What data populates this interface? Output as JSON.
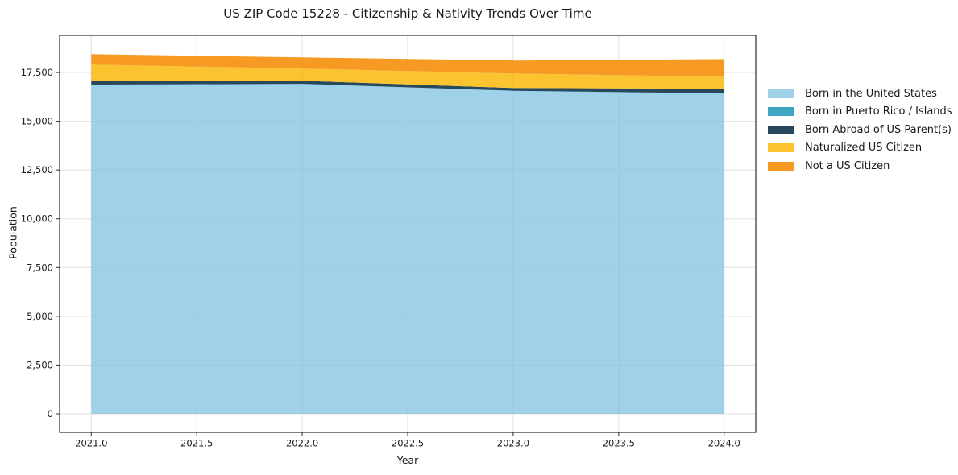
{
  "title": "US ZIP Code 15228 - Citizenship & Nativity Trends Over Time",
  "chart_data": {
    "type": "area",
    "stacked": true,
    "title": "US ZIP Code 15228 - Citizenship & Nativity Trends Over Time",
    "xlabel": "Year",
    "ylabel": "Population",
    "x": [
      2021,
      2022,
      2023,
      2024
    ],
    "series": [
      {
        "name": "Born in the United States",
        "color": "#9FD1E8",
        "values": [
          16870,
          16910,
          16555,
          16420
        ]
      },
      {
        "name": "Born in Puerto Rico / Islands",
        "color": "#3FA6C2",
        "values": [
          8,
          8,
          8,
          8
        ]
      },
      {
        "name": "Born Abroad of US Parent(s)",
        "color": "#28495C",
        "values": [
          200,
          160,
          140,
          235
        ]
      },
      {
        "name": "Naturalized US Citizen",
        "color": "#FCC330",
        "values": [
          825,
          620,
          745,
          615
        ]
      },
      {
        "name": "Not a US Citizen",
        "color": "#F79A23",
        "values": [
          535,
          575,
          665,
          910
        ]
      }
    ],
    "xlim": [
      2020.85,
      2024.15
    ],
    "ylim": [
      -950,
      19400
    ],
    "xtick_values": [
      2021,
      2021.5,
      2022,
      2022.5,
      2023,
      2023.5,
      2024
    ],
    "xtick_labels": [
      "2021.0",
      "2021.5",
      "2022.0",
      "2022.5",
      "2023.0",
      "2023.5",
      "2024.0"
    ],
    "ytick_values": [
      0,
      2500,
      5000,
      7500,
      10000,
      12500,
      15000,
      17500
    ],
    "ytick_labels": [
      "0",
      "2,500",
      "5,000",
      "7,500",
      "10,000",
      "12,500",
      "15,000",
      "17,500"
    ],
    "grid": true,
    "legend_position": "right-outside"
  },
  "colors": {
    "background": "#FFFFFF",
    "grid": "#E8E8E8",
    "grid_overlay": "rgba(100,100,100,0.06)",
    "spine": "#2B2B2B",
    "tick": "#2B2B2B",
    "text": "#1A1A1A"
  }
}
